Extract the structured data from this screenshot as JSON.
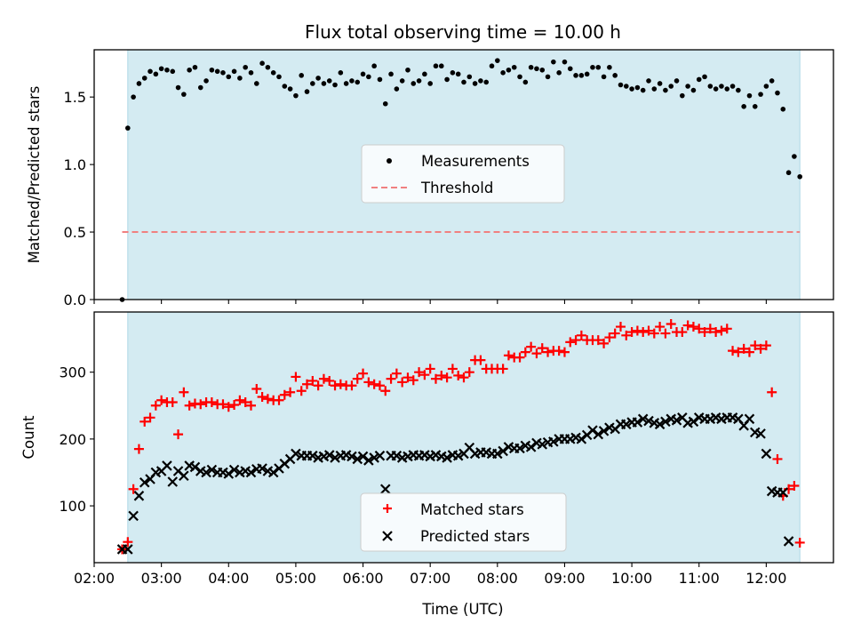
{
  "chart_data": [
    {
      "type": "scatter",
      "title": "Flux total observing time = 10.00 h",
      "xlabel": "",
      "ylabel": "Matched/Predicted stars",
      "ylim": [
        0,
        1.85
      ],
      "yticks": [
        "0.0",
        "0.5",
        "1.0",
        "1.5"
      ],
      "legend_position": "center",
      "observing_window": [
        "02:30",
        "12:30"
      ],
      "colors": {
        "window": "#add8e6",
        "measurements": "#000000",
        "threshold": "#f08080"
      },
      "threshold": {
        "name": "Threshold",
        "value": 0.5
      },
      "series": [
        {
          "name": "Measurements",
          "x": [
            "02:25",
            "02:30",
            "02:35",
            "02:40",
            "02:45",
            "02:50",
            "02:55",
            "03:00",
            "03:05",
            "03:10",
            "03:15",
            "03:20",
            "03:25",
            "03:30",
            "03:35",
            "03:40",
            "03:45",
            "03:50",
            "03:55",
            "04:00",
            "04:05",
            "04:10",
            "04:15",
            "04:20",
            "04:25",
            "04:30",
            "04:35",
            "04:40",
            "04:45",
            "04:50",
            "04:55",
            "05:00",
            "05:05",
            "05:10",
            "05:15",
            "05:20",
            "05:25",
            "05:30",
            "05:35",
            "05:40",
            "05:45",
            "05:50",
            "05:55",
            "06:00",
            "06:05",
            "06:10",
            "06:15",
            "06:20",
            "06:25",
            "06:30",
            "06:35",
            "06:40",
            "06:45",
            "06:50",
            "06:55",
            "07:00",
            "07:05",
            "07:10",
            "07:15",
            "07:20",
            "07:25",
            "07:30",
            "07:35",
            "07:40",
            "07:45",
            "07:50",
            "07:55",
            "08:00",
            "08:05",
            "08:10",
            "08:15",
            "08:20",
            "08:25",
            "08:30",
            "08:35",
            "08:40",
            "08:45",
            "08:50",
            "08:55",
            "09:00",
            "09:05",
            "09:10",
            "09:15",
            "09:20",
            "09:25",
            "09:30",
            "09:35",
            "09:40",
            "09:45",
            "09:50",
            "09:55",
            "10:00",
            "10:05",
            "10:10",
            "10:15",
            "10:20",
            "10:25",
            "10:30",
            "10:35",
            "10:40",
            "10:45",
            "10:50",
            "10:55",
            "11:00",
            "11:05",
            "11:10",
            "11:15",
            "11:20",
            "11:25",
            "11:30",
            "11:35",
            "11:40",
            "11:45",
            "11:50",
            "11:55",
            "12:00",
            "12:05",
            "12:10",
            "12:15",
            "12:20",
            "12:25",
            "12:30"
          ],
          "values": [
            0.0,
            1.27,
            1.5,
            1.6,
            1.64,
            1.69,
            1.67,
            1.71,
            1.7,
            1.69,
            1.57,
            1.52,
            1.7,
            1.72,
            1.57,
            1.62,
            1.7,
            1.69,
            1.68,
            1.65,
            1.69,
            1.64,
            1.72,
            1.68,
            1.6,
            1.75,
            1.72,
            1.68,
            1.65,
            1.58,
            1.56,
            1.51,
            1.66,
            1.54,
            1.6,
            1.64,
            1.6,
            1.62,
            1.59,
            1.68,
            1.6,
            1.62,
            1.61,
            1.67,
            1.65,
            1.73,
            1.63,
            1.45,
            1.67,
            1.56,
            1.62,
            1.7,
            1.6,
            1.62,
            1.67,
            1.6,
            1.73,
            1.73,
            1.63,
            1.68,
            1.67,
            1.61,
            1.65,
            1.6,
            1.62,
            1.61,
            1.73,
            1.77,
            1.68,
            1.7,
            1.72,
            1.65,
            1.61,
            1.72,
            1.71,
            1.7,
            1.65,
            1.76,
            1.68,
            1.76,
            1.71,
            1.66,
            1.66,
            1.67,
            1.72,
            1.72,
            1.65,
            1.72,
            1.66,
            1.59,
            1.58,
            1.56,
            1.57,
            1.55,
            1.62,
            1.56,
            1.6,
            1.55,
            1.58,
            1.62,
            1.51,
            1.58,
            1.55,
            1.63,
            1.65,
            1.58,
            1.56,
            1.58,
            1.56,
            1.58,
            1.55,
            1.43,
            1.51,
            1.43,
            1.52,
            1.58,
            1.62,
            1.53,
            1.41,
            0.94,
            1.06,
            0.91
          ]
        }
      ]
    },
    {
      "type": "scatter",
      "xlabel": "Time (UTC)",
      "ylabel": "Count",
      "ylim": [
        15,
        390
      ],
      "yticks": [
        "100",
        "200",
        "300"
      ],
      "xticks": [
        "02:00",
        "03:00",
        "04:00",
        "05:00",
        "06:00",
        "07:00",
        "08:00",
        "09:00",
        "10:00",
        "11:00",
        "12:00"
      ],
      "legend_position": "lower center",
      "observing_window": [
        "02:30",
        "12:30"
      ],
      "colors": {
        "window": "#add8e6",
        "matched": "#ff0000",
        "predicted": "#000000"
      },
      "x": [
        "02:25",
        "02:30",
        "02:35",
        "02:40",
        "02:45",
        "02:50",
        "02:55",
        "03:00",
        "03:05",
        "03:10",
        "03:15",
        "03:20",
        "03:25",
        "03:30",
        "03:35",
        "03:40",
        "03:45",
        "03:50",
        "03:55",
        "04:00",
        "04:05",
        "04:10",
        "04:15",
        "04:20",
        "04:25",
        "04:30",
        "04:35",
        "04:40",
        "04:45",
        "04:50",
        "04:55",
        "05:00",
        "05:05",
        "05:10",
        "05:15",
        "05:20",
        "05:25",
        "05:30",
        "05:35",
        "05:40",
        "05:45",
        "05:50",
        "05:55",
        "06:00",
        "06:05",
        "06:10",
        "06:15",
        "06:20",
        "06:25",
        "06:30",
        "06:35",
        "06:40",
        "06:45",
        "06:50",
        "06:55",
        "07:00",
        "07:05",
        "07:10",
        "07:15",
        "07:20",
        "07:25",
        "07:30",
        "07:35",
        "07:40",
        "07:45",
        "07:50",
        "07:55",
        "08:00",
        "08:05",
        "08:10",
        "08:15",
        "08:20",
        "08:25",
        "08:30",
        "08:35",
        "08:40",
        "08:45",
        "08:50",
        "08:55",
        "09:00",
        "09:05",
        "09:10",
        "09:15",
        "09:20",
        "09:25",
        "09:30",
        "09:35",
        "09:40",
        "09:45",
        "09:50",
        "09:55",
        "10:00",
        "10:05",
        "10:10",
        "10:15",
        "10:20",
        "10:25",
        "10:30",
        "10:35",
        "10:40",
        "10:45",
        "10:50",
        "10:55",
        "11:00",
        "11:05",
        "11:10",
        "11:15",
        "11:20",
        "11:25",
        "11:30",
        "11:35",
        "11:40",
        "11:45",
        "11:50",
        "11:55",
        "12:00",
        "12:05",
        "12:10",
        "12:15",
        "12:20",
        "12:25",
        "12:30"
      ],
      "series": [
        {
          "name": "Matched stars",
          "marker": "plus",
          "values": [
            35,
            46,
            125,
            185,
            226,
            232,
            250,
            258,
            255,
            255,
            207,
            270,
            250,
            253,
            252,
            255,
            255,
            252,
            252,
            248,
            251,
            258,
            255,
            250,
            275,
            263,
            260,
            258,
            258,
            266,
            270,
            293,
            272,
            282,
            287,
            280,
            290,
            287,
            280,
            282,
            280,
            280,
            290,
            298,
            285,
            282,
            280,
            272,
            290,
            298,
            285,
            292,
            288,
            300,
            296,
            305,
            290,
            295,
            292,
            305,
            295,
            292,
            300,
            318,
            318,
            305,
            305,
            305,
            305,
            325,
            322,
            322,
            330,
            338,
            328,
            336,
            330,
            332,
            332,
            330,
            345,
            348,
            355,
            348,
            348,
            348,
            343,
            352,
            358,
            368,
            355,
            360,
            362,
            360,
            362,
            358,
            368,
            358,
            372,
            360,
            360,
            370,
            368,
            365,
            360,
            365,
            360,
            362,
            365,
            332,
            330,
            335,
            330,
            340,
            335,
            340,
            270,
            170,
            115,
            125,
            130,
            45
          ]
        },
        {
          "name": "Predicted stars",
          "marker": "x",
          "values": [
            35,
            35,
            85,
            115,
            135,
            140,
            150,
            152,
            160,
            136,
            152,
            145,
            160,
            158,
            152,
            150,
            154,
            150,
            150,
            148,
            154,
            150,
            152,
            150,
            155,
            156,
            152,
            150,
            156,
            163,
            170,
            178,
            175,
            175,
            175,
            172,
            174,
            176,
            172,
            175,
            176,
            174,
            170,
            174,
            168,
            172,
            175,
            125,
            175,
            175,
            172,
            174,
            176,
            175,
            176,
            174,
            176,
            174,
            172,
            176,
            175,
            178,
            187,
            178,
            180,
            180,
            178,
            178,
            182,
            188,
            186,
            186,
            190,
            188,
            194,
            192,
            195,
            196,
            200,
            200,
            200,
            202,
            200,
            206,
            213,
            207,
            212,
            217,
            215,
            222,
            222,
            225,
            225,
            230,
            227,
            224,
            222,
            226,
            230,
            228,
            232,
            224,
            226,
            232,
            230,
            230,
            232,
            230,
            232,
            232,
            230,
            220,
            230,
            210,
            208,
            178,
            122,
            120,
            120,
            47
          ]
        }
      ]
    }
  ]
}
